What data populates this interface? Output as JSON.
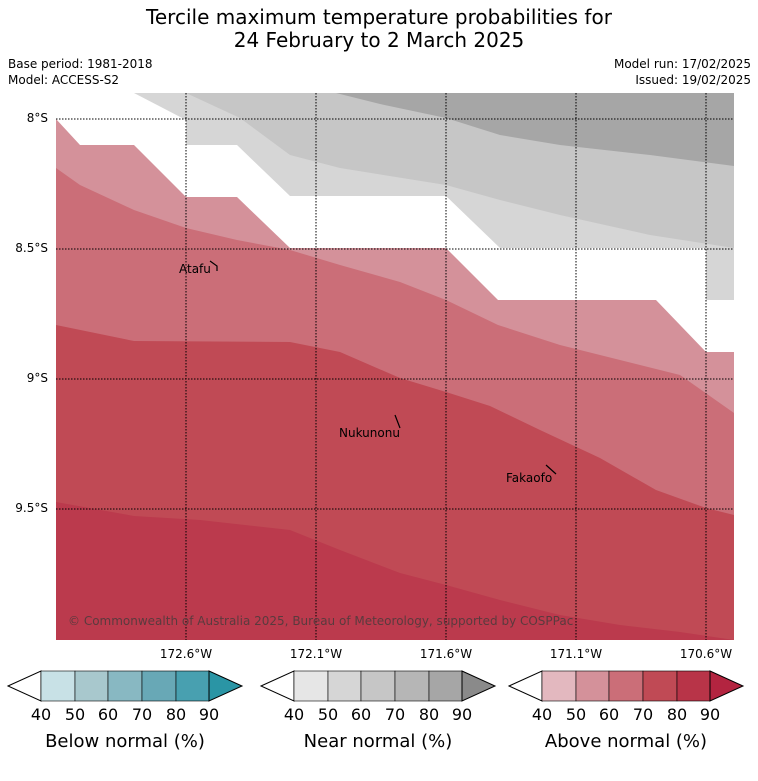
{
  "title_line1": "Tercile maximum temperature probabilities for",
  "title_line2": "24 February to 2 March 2025",
  "base_period": "Base period: 1981-2018",
  "model": "Model: ACCESS-S2",
  "model_run": "Model run: 17/02/2025",
  "issued": "Issued: 19/02/2025",
  "lat_labels": [
    "8°S",
    "8.5°S",
    "9°S",
    "9.5°S"
  ],
  "lon_labels": [
    "172.6°W",
    "172.1°W",
    "171.6°W",
    "171.1°W",
    "170.6°W"
  ],
  "places": [
    "Atafu",
    "Nukunonu",
    "Fakaofo"
  ],
  "copyright": "© Commonwealth of Australia 2025, Bureau of Meteorology, supported by COSPPac",
  "colorbars": [
    {
      "title": "Below normal (%)",
      "ticks": [
        "40",
        "50",
        "60",
        "70",
        "80",
        "90"
      ],
      "colors": [
        "#ffffff",
        "#c8e1e6",
        "#a8c8cd",
        "#88b8c2",
        "#68a8b6",
        "#48a0b0",
        "#2a95a5"
      ]
    },
    {
      "title": "Near normal (%)",
      "ticks": [
        "40",
        "50",
        "60",
        "70",
        "80",
        "90"
      ],
      "colors": [
        "#ffffff",
        "#e6e6e6",
        "#d6d6d6",
        "#c6c6c6",
        "#b6b6b6",
        "#a6a6a6",
        "#8a8a8a"
      ]
    },
    {
      "title": "Above normal (%)",
      "ticks": [
        "40",
        "50",
        "60",
        "70",
        "80",
        "90"
      ],
      "colors": [
        "#ffffff",
        "#e3b8bf",
        "#d4919a",
        "#cb6e78",
        "#c04a55",
        "#b83448",
        "#b32440"
      ]
    }
  ],
  "colors": {
    "above_40": "#d4919a",
    "above_50": "#cb6e78",
    "above_60": "#c04a55",
    "above_70": "#bb3a4d",
    "near_40": "#d6d6d6",
    "near_50": "#c6c6c6",
    "near_60": "#a6a6a6"
  }
}
